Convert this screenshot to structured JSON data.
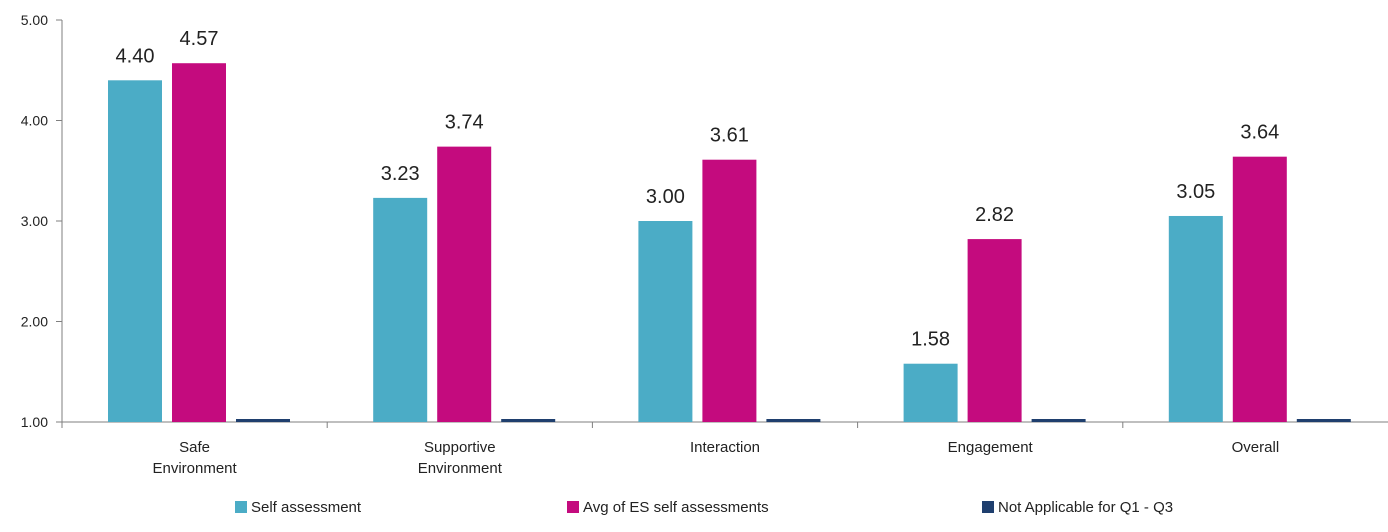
{
  "chart_data": {
    "type": "bar",
    "categories": [
      [
        "Safe",
        "Environment"
      ],
      [
        "Supportive",
        "Environment"
      ],
      [
        "Interaction"
      ],
      [
        "Engagement"
      ],
      [
        "Overall"
      ]
    ],
    "series": [
      {
        "name": "Self assessment",
        "color": "#4bacc6",
        "values": [
          4.4,
          3.23,
          3.0,
          1.58,
          3.05
        ],
        "labels": [
          "4.40",
          "3.23",
          "3.00",
          "1.58",
          "3.05"
        ]
      },
      {
        "name": "Avg of ES self assessments",
        "color": "#c40b7e",
        "values": [
          4.57,
          3.74,
          3.61,
          2.82,
          3.64
        ],
        "labels": [
          "4.57",
          "3.74",
          "3.61",
          "2.82",
          "3.64"
        ]
      },
      {
        "name": "Not Applicable for Q1 - Q3",
        "color": "#1f3f6e",
        "values": [
          1.0,
          1.0,
          1.0,
          1.0,
          1.0
        ],
        "labels": [
          "",
          "",
          "",
          "",
          ""
        ]
      }
    ],
    "ylim": [
      1.0,
      5.0
    ],
    "yticks": [
      "1.00",
      "2.00",
      "3.00",
      "4.00",
      "5.00"
    ],
    "grid": false,
    "legend": "bottom"
  }
}
